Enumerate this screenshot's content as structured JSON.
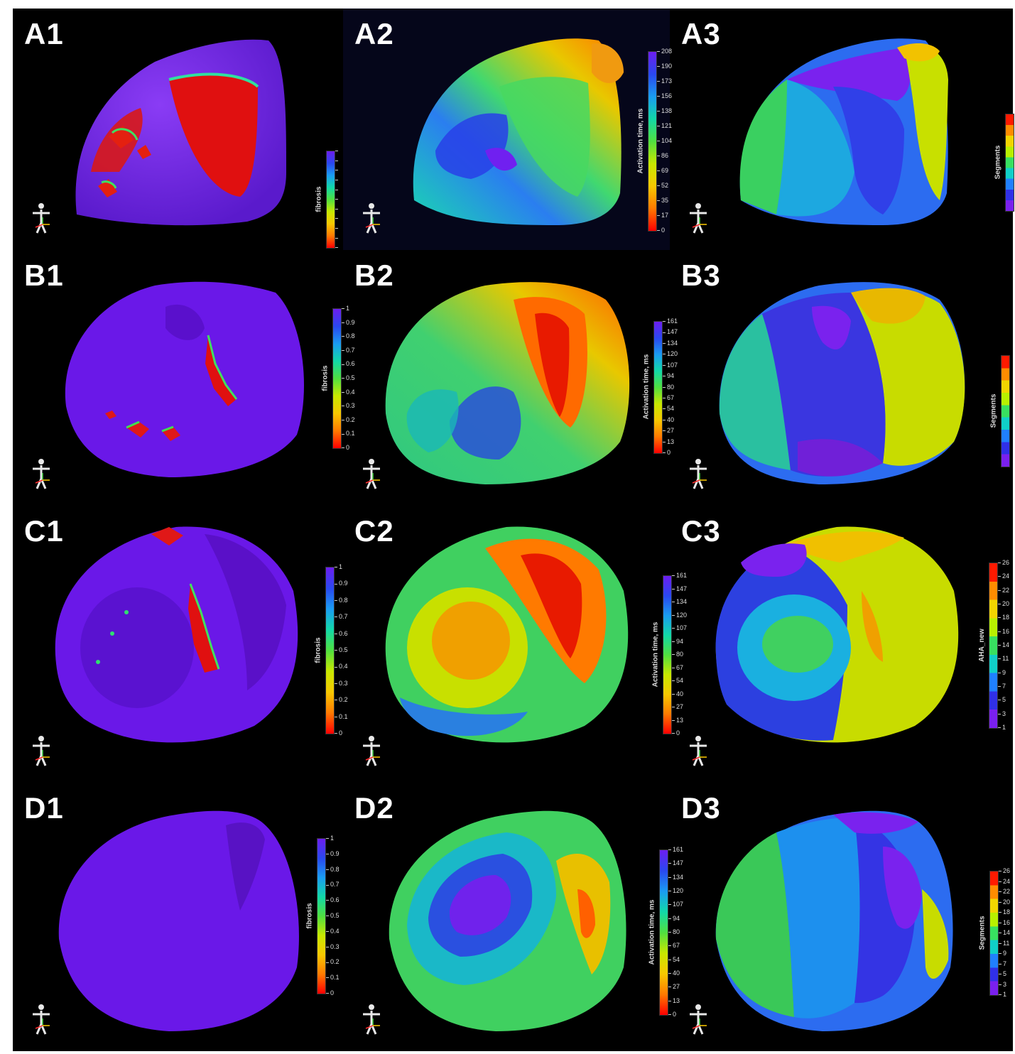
{
  "palette_rainbow": [
    "#ff0000",
    "#ff7a00",
    "#f7c800",
    "#c8e800",
    "#50e040",
    "#12d8a8",
    "#1a9cf2",
    "#2a48f0",
    "#6c1ef0"
  ],
  "palette_segments": [
    "#ff1a00",
    "#ff8c00",
    "#f2d500",
    "#b8f000",
    "#38e060",
    "#10cfc8",
    "#2080ff",
    "#3030e8",
    "#7a20ee"
  ],
  "panels": [
    {
      "id": "A1",
      "label": "A1",
      "colorbar_title": "fibrosis",
      "ticks": [
        "",
        "",
        "",
        "",
        "",
        "",
        "",
        "",
        "",
        "",
        ""
      ]
    },
    {
      "id": "A2",
      "label": "A2",
      "colorbar_title": "Activation time, ms",
      "ticks": [
        "208",
        "190",
        "173",
        "156",
        "138",
        "121",
        "104",
        "86",
        "69",
        "52",
        "35",
        "17",
        "0"
      ]
    },
    {
      "id": "A3",
      "label": "A3",
      "colorbar_title": "Segments",
      "ticks": []
    },
    {
      "id": "B1",
      "label": "B1",
      "colorbar_title": "fibrosis",
      "ticks": [
        "1",
        "0.9",
        "0.8",
        "0.7",
        "0.6",
        "0.5",
        "0.4",
        "0.3",
        "0.2",
        "0.1",
        "0"
      ]
    },
    {
      "id": "B2",
      "label": "B2",
      "colorbar_title": "Activation time, ms",
      "ticks": [
        "161",
        "147",
        "134",
        "120",
        "107",
        "94",
        "80",
        "67",
        "54",
        "40",
        "27",
        "13",
        "0"
      ]
    },
    {
      "id": "B3",
      "label": "B3",
      "colorbar_title": "Segments",
      "ticks": []
    },
    {
      "id": "C1",
      "label": "C1",
      "colorbar_title": "fibrosis",
      "ticks": [
        "1",
        "0.9",
        "0.8",
        "0.7",
        "0.6",
        "0.5",
        "0.4",
        "0.3",
        "0.2",
        "0.1",
        "0"
      ]
    },
    {
      "id": "C2",
      "label": "C2",
      "colorbar_title": "Activation time, ms",
      "ticks": [
        "161",
        "147",
        "134",
        "120",
        "107",
        "94",
        "80",
        "67",
        "54",
        "40",
        "27",
        "13",
        "0"
      ]
    },
    {
      "id": "C3",
      "label": "C3",
      "colorbar_title": "AHA_new",
      "ticks": [
        "26",
        "24",
        "22",
        "20",
        "18",
        "16",
        "14",
        "11",
        "9",
        "7",
        "5",
        "3",
        "1"
      ]
    },
    {
      "id": "D1",
      "label": "D1",
      "colorbar_title": "fibrosis",
      "ticks": [
        "1",
        "0.9",
        "0.8",
        "0.7",
        "0.6",
        "0.5",
        "0.4",
        "0.3",
        "0.2",
        "0.1",
        "0"
      ]
    },
    {
      "id": "D2",
      "label": "D2",
      "colorbar_title": "Activation time, ms",
      "ticks": [
        "161",
        "147",
        "134",
        "120",
        "107",
        "94",
        "80",
        "67",
        "54",
        "40",
        "27",
        "13",
        "0"
      ]
    },
    {
      "id": "D3",
      "label": "D3",
      "colorbar_title": "Segments",
      "ticks": [
        "26",
        "24",
        "22",
        "20",
        "18",
        "16",
        "14",
        "11",
        "9",
        "7",
        "5",
        "3",
        "1"
      ]
    }
  ]
}
